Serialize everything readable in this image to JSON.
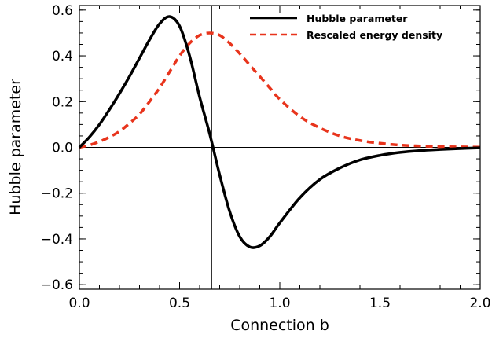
{
  "chart_data": {
    "type": "line",
    "xlabel": "Connection b",
    "ylabel": "Hubble parameter",
    "xlim": [
      0.0,
      2.0
    ],
    "ylim": [
      -0.62,
      0.62
    ],
    "x_ticks": [
      "0.0",
      "0.5",
      "1.0",
      "1.5",
      "2.0"
    ],
    "y_ticks": [
      "0.6",
      "0.4",
      "0.2",
      "0.0",
      "−0.2",
      "−0.4",
      "−0.6"
    ],
    "zero_line": 0.0,
    "vertical_line": 0.66,
    "legend_position": "top-right",
    "series": [
      {
        "name": "Hubble parameter",
        "color": "#000000",
        "style": "solid",
        "x": [
          0.0,
          0.05,
          0.1,
          0.15,
          0.2,
          0.25,
          0.3,
          0.35,
          0.4,
          0.45,
          0.5,
          0.55,
          0.6,
          0.65,
          0.7,
          0.75,
          0.8,
          0.85,
          0.9,
          0.95,
          1.0,
          1.1,
          1.2,
          1.3,
          1.4,
          1.5,
          1.6,
          1.7,
          1.8,
          1.9,
          2.0
        ],
        "y": [
          0.0,
          0.045,
          0.1,
          0.165,
          0.235,
          0.31,
          0.39,
          0.47,
          0.54,
          0.572,
          0.53,
          0.4,
          0.22,
          0.06,
          -0.12,
          -0.28,
          -0.39,
          -0.435,
          -0.43,
          -0.39,
          -0.33,
          -0.22,
          -0.14,
          -0.09,
          -0.055,
          -0.035,
          -0.022,
          -0.014,
          -0.009,
          -0.005,
          -0.002
        ]
      },
      {
        "name": "Rescaled energy density",
        "color": "#e8341c",
        "style": "dashed",
        "x": [
          0.0,
          0.05,
          0.1,
          0.15,
          0.2,
          0.25,
          0.3,
          0.35,
          0.4,
          0.45,
          0.5,
          0.55,
          0.6,
          0.65,
          0.7,
          0.75,
          0.8,
          0.85,
          0.9,
          0.95,
          1.0,
          1.1,
          1.2,
          1.3,
          1.4,
          1.5,
          1.6,
          1.7,
          1.8,
          1.9,
          2.0
        ],
        "y": [
          0.0,
          0.01,
          0.025,
          0.045,
          0.07,
          0.105,
          0.145,
          0.2,
          0.26,
          0.33,
          0.4,
          0.455,
          0.49,
          0.5,
          0.49,
          0.455,
          0.41,
          0.36,
          0.31,
          0.26,
          0.21,
          0.135,
          0.085,
          0.05,
          0.03,
          0.018,
          0.01,
          0.006,
          0.003,
          0.002,
          0.001
        ]
      }
    ]
  }
}
